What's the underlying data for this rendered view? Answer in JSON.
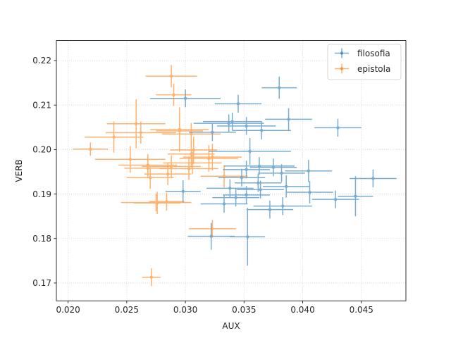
{
  "chart_data": {
    "type": "scatter",
    "xlabel": "AUX",
    "ylabel": "VERB",
    "xlim": [
      0.019,
      0.0488
    ],
    "ylim": [
      0.166,
      0.2245
    ],
    "xticks": [
      "0.020",
      "0.025",
      "0.030",
      "0.035",
      "0.040",
      "0.045"
    ],
    "yticks": [
      "0.17",
      "0.18",
      "0.19",
      "0.20",
      "0.21",
      "0.22"
    ],
    "grid": true,
    "legend_position": "top-right",
    "series": [
      {
        "name": "filosofia",
        "color": "#1f77b4",
        "points": [
          {
            "x": 0.038,
            "y": 0.2139,
            "xerr": 0.0015,
            "yerr": 0.0025
          },
          {
            "x": 0.0345,
            "y": 0.2103,
            "xerr": 0.002,
            "yerr": 0.002
          },
          {
            "x": 0.03,
            "y": 0.2115,
            "xerr": 0.003,
            "yerr": 0.002
          },
          {
            "x": 0.0388,
            "y": 0.2068,
            "xerr": 0.002,
            "yerr": 0.0025
          },
          {
            "x": 0.043,
            "y": 0.2049,
            "xerr": 0.002,
            "yerr": 0.002
          },
          {
            "x": 0.034,
            "y": 0.2063,
            "xerr": 0.0025,
            "yerr": 0.002
          },
          {
            "x": 0.0337,
            "y": 0.2059,
            "xerr": 0.003,
            "yerr": 0.002
          },
          {
            "x": 0.0352,
            "y": 0.2053,
            "xerr": 0.0025,
            "yerr": 0.002
          },
          {
            "x": 0.0365,
            "y": 0.2043,
            "xerr": 0.0025,
            "yerr": 0.002
          },
          {
            "x": 0.0323,
            "y": 0.2039,
            "xerr": 0.002,
            "yerr": 0.002
          },
          {
            "x": 0.0355,
            "y": 0.1996,
            "xerr": 0.0035,
            "yerr": 0.003
          },
          {
            "x": 0.0363,
            "y": 0.1963,
            "xerr": 0.003,
            "yerr": 0.002
          },
          {
            "x": 0.0375,
            "y": 0.196,
            "xerr": 0.002,
            "yerr": 0.002
          },
          {
            "x": 0.0352,
            "y": 0.1955,
            "xerr": 0.002,
            "yerr": 0.002
          },
          {
            "x": 0.0405,
            "y": 0.1952,
            "xerr": 0.002,
            "yerr": 0.0025
          },
          {
            "x": 0.0382,
            "y": 0.1947,
            "xerr": 0.002,
            "yerr": 0.002
          },
          {
            "x": 0.0348,
            "y": 0.1937,
            "xerr": 0.002,
            "yerr": 0.002
          },
          {
            "x": 0.046,
            "y": 0.1935,
            "xerr": 0.002,
            "yerr": 0.002
          },
          {
            "x": 0.0362,
            "y": 0.1925,
            "xerr": 0.002,
            "yerr": 0.002
          },
          {
            "x": 0.0386,
            "y": 0.1917,
            "xerr": 0.002,
            "yerr": 0.0025
          },
          {
            "x": 0.0338,
            "y": 0.1913,
            "xerr": 0.002,
            "yerr": 0.002
          },
          {
            "x": 0.0364,
            "y": 0.191,
            "xerr": 0.002,
            "yerr": 0.002
          },
          {
            "x": 0.0298,
            "y": 0.1906,
            "xerr": 0.0015,
            "yerr": 0.0025
          },
          {
            "x": 0.0406,
            "y": 0.1904,
            "xerr": 0.002,
            "yerr": 0.0025
          },
          {
            "x": 0.0352,
            "y": 0.1898,
            "xerr": 0.002,
            "yerr": 0.002
          },
          {
            "x": 0.0445,
            "y": 0.1895,
            "xerr": 0.0015,
            "yerr": 0.0045
          },
          {
            "x": 0.0343,
            "y": 0.1892,
            "xerr": 0.002,
            "yerr": 0.002
          },
          {
            "x": 0.0428,
            "y": 0.1888,
            "xerr": 0.002,
            "yerr": 0.002
          },
          {
            "x": 0.0333,
            "y": 0.1878,
            "xerr": 0.002,
            "yerr": 0.002
          },
          {
            "x": 0.0383,
            "y": 0.1873,
            "xerr": 0.0025,
            "yerr": 0.002
          },
          {
            "x": 0.0372,
            "y": 0.1865,
            "xerr": 0.002,
            "yerr": 0.002
          },
          {
            "x": 0.0322,
            "y": 0.1805,
            "xerr": 0.002,
            "yerr": 0.003
          },
          {
            "x": 0.0353,
            "y": 0.1804,
            "xerr": 0.0015,
            "yerr": 0.0065
          }
        ]
      },
      {
        "name": "epistola",
        "color": "#ff7f0e",
        "points": [
          {
            "x": 0.0288,
            "y": 0.2165,
            "xerr": 0.0022,
            "yerr": 0.0025
          },
          {
            "x": 0.029,
            "y": 0.2123,
            "xerr": 0.0015,
            "yerr": 0.0025
          },
          {
            "x": 0.0258,
            "y": 0.2058,
            "xerr": 0.0025,
            "yerr": 0.0055
          },
          {
            "x": 0.0295,
            "y": 0.2045,
            "xerr": 0.0025,
            "yerr": 0.005
          },
          {
            "x": 0.0295,
            "y": 0.2042,
            "xerr": 0.002,
            "yerr": 0.003
          },
          {
            "x": 0.0262,
            "y": 0.2038,
            "xerr": 0.003,
            "yerr": 0.0025
          },
          {
            "x": 0.0305,
            "y": 0.2035,
            "xerr": 0.0025,
            "yerr": 0.0025
          },
          {
            "x": 0.0239,
            "y": 0.2028,
            "xerr": 0.0025,
            "yerr": 0.0035
          },
          {
            "x": 0.0219,
            "y": 0.2001,
            "xerr": 0.0015,
            "yerr": 0.0015
          },
          {
            "x": 0.0307,
            "y": 0.1999,
            "xerr": 0.002,
            "yerr": 0.003
          },
          {
            "x": 0.0305,
            "y": 0.199,
            "xerr": 0.002,
            "yerr": 0.003
          },
          {
            "x": 0.0323,
            "y": 0.1983,
            "xerr": 0.0025,
            "yerr": 0.003
          },
          {
            "x": 0.0253,
            "y": 0.1978,
            "xerr": 0.003,
            "yerr": 0.003
          },
          {
            "x": 0.032,
            "y": 0.198,
            "xerr": 0.0025,
            "yerr": 0.003
          },
          {
            "x": 0.0306,
            "y": 0.197,
            "xerr": 0.0025,
            "yerr": 0.0025
          },
          {
            "x": 0.0268,
            "y": 0.1965,
            "xerr": 0.0025,
            "yerr": 0.0025
          },
          {
            "x": 0.0288,
            "y": 0.1962,
            "xerr": 0.0025,
            "yerr": 0.0025
          },
          {
            "x": 0.0268,
            "y": 0.1958,
            "xerr": 0.002,
            "yerr": 0.002
          },
          {
            "x": 0.0303,
            "y": 0.1957,
            "xerr": 0.0025,
            "yerr": 0.0025
          },
          {
            "x": 0.0285,
            "y": 0.1945,
            "xerr": 0.002,
            "yerr": 0.0025
          },
          {
            "x": 0.0333,
            "y": 0.194,
            "xerr": 0.002,
            "yerr": 0.0025
          },
          {
            "x": 0.027,
            "y": 0.1937,
            "xerr": 0.002,
            "yerr": 0.0025
          },
          {
            "x": 0.0284,
            "y": 0.1883,
            "xerr": 0.0015,
            "yerr": 0.002
          },
          {
            "x": 0.0276,
            "y": 0.188,
            "xerr": 0.002,
            "yerr": 0.0025
          },
          {
            "x": 0.0275,
            "y": 0.1881,
            "xerr": 0.003,
            "yerr": 0.002
          },
          {
            "x": 0.0323,
            "y": 0.1822,
            "xerr": 0.002,
            "yerr": 0.002
          },
          {
            "x": 0.0271,
            "y": 0.1713,
            "xerr": 0.0008,
            "yerr": 0.002
          }
        ]
      }
    ]
  }
}
